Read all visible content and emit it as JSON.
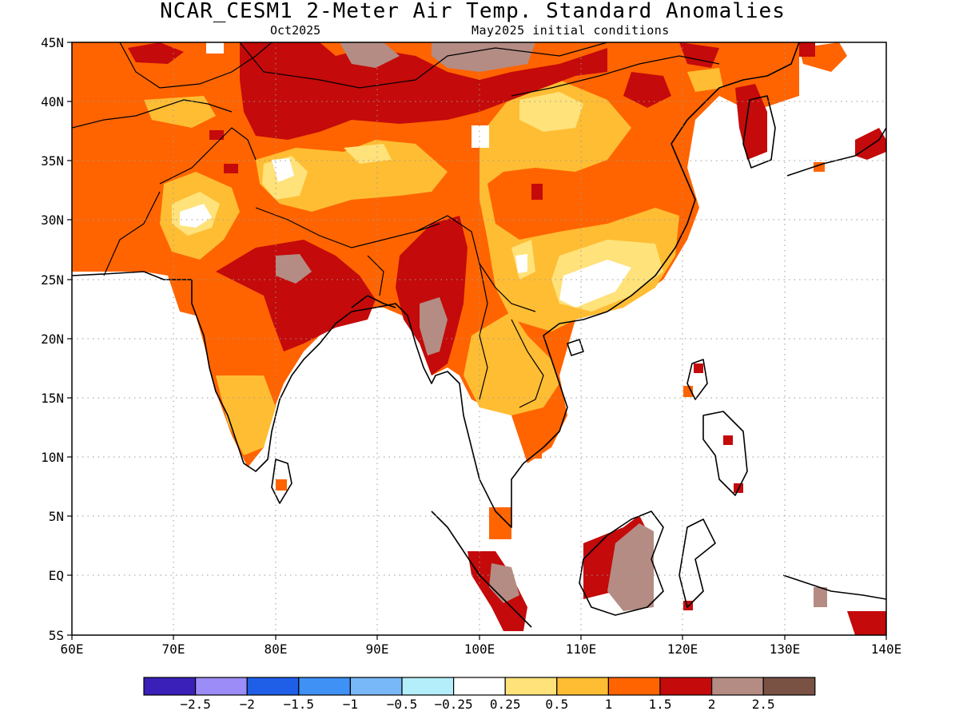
{
  "title": "NCAR_CESM1 2-Meter Air Temp. Standard Anomalies",
  "subtitle_left": "Oct2025",
  "subtitle_right": "May2025 initial conditions",
  "lat_labels": [
    "45N",
    "40N",
    "35N",
    "30N",
    "25N",
    "20N",
    "15N",
    "10N",
    "5N",
    "EQ",
    "5S"
  ],
  "lon_labels": [
    "60E",
    "70E",
    "80E",
    "90E",
    "100E",
    "110E",
    "120E",
    "130E",
    "140E"
  ],
  "colorbar": {
    "colors": [
      "#3a1fb8",
      "#9b8cf7",
      "#1f5fe8",
      "#3f91f5",
      "#78b8f8",
      "#b4eefa",
      "#ffffff",
      "#ffe27a",
      "#ffbd33",
      "#ff6400",
      "#c40a0a",
      "#b48c84",
      "#7a5244"
    ],
    "labels": [
      "−2.5",
      "−2",
      "−1.5",
      "−1",
      "−0.5",
      "−0.25",
      "0.25",
      "0.5",
      "1",
      "1.5",
      "2",
      "2.5"
    ]
  },
  "map_colors": {
    "ocean": "#ffffff",
    "anom_1_1p5": "#ff6400",
    "anom_1p5_2": "#c40a0a",
    "anom_2_2p5": "#b48c84",
    "anom_0p5_1": "#ffbd33",
    "anom_0p25_0p5": "#ffe27a",
    "anom_neutral": "#ffffff"
  }
}
